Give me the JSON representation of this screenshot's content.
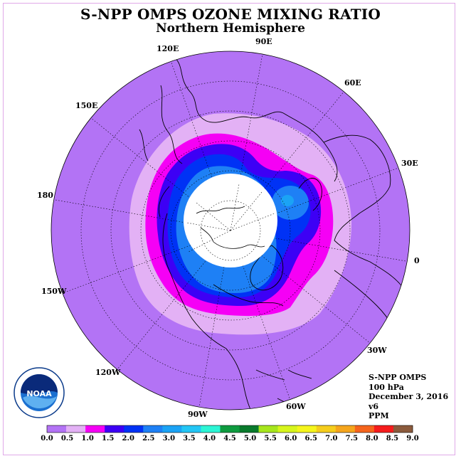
{
  "header": {
    "title": "S-NPP OMPS OZONE MIXING RATIO",
    "subtitle": "Northern Hemisphere"
  },
  "longitude_labels": [
    "90E",
    "60E",
    "30E",
    "0",
    "30W",
    "60W",
    "90W",
    "120W",
    "150W",
    "180",
    "150E",
    "120E"
  ],
  "info": {
    "instrument": "S-NPP OMPS",
    "level": "100 hPa",
    "date": "December 3, 2016",
    "version": "v6",
    "units": "PPM"
  },
  "logo": {
    "text": "NOAA",
    "icon": "noaa-logo"
  },
  "legend": {
    "ticks": [
      "0.0",
      "0.5",
      "1.0",
      "1.5",
      "2.0",
      "2.5",
      "3.0",
      "3.5",
      "4.0",
      "4.5",
      "5.0",
      "5.5",
      "6.0",
      "6.5",
      "7.0",
      "7.5",
      "8.0",
      "8.5",
      "9.0"
    ],
    "colors": [
      "#b373f5",
      "#e3b1f5",
      "#f500f5",
      "#3d00f5",
      "#0032f5",
      "#1e80f5",
      "#1ba3f5",
      "#23c6f5",
      "#2cf5d5",
      "#0e9b3f",
      "#097a2c",
      "#a6e61c",
      "#d7f51c",
      "#f5f51c",
      "#f5cd1c",
      "#f5a51c",
      "#f5641c",
      "#f51c1c",
      "#8b5a3c"
    ]
  },
  "map_colors": {
    "ocean_low": "#b373f5",
    "band_0_5": "#e3b1f5",
    "band_1_0": "#f500f5",
    "band_1_5": "#3d00f5",
    "band_2_0": "#0032f5",
    "band_2_5": "#1e80f5",
    "band_3_0": "#1ba3f5",
    "no_data": "#ffffff"
  }
}
